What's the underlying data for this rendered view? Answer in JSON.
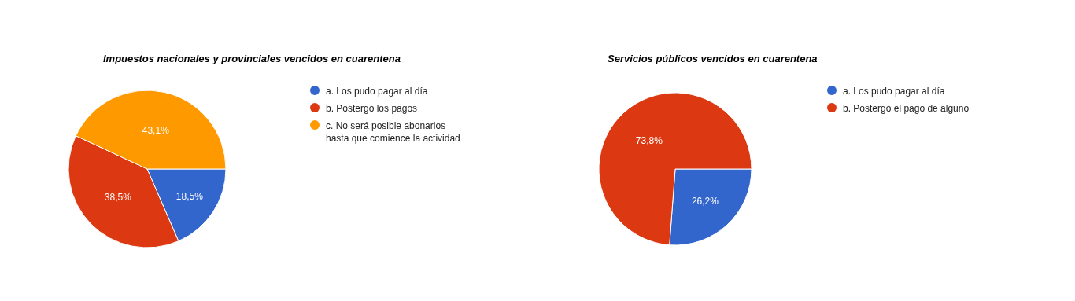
{
  "chart_data": [
    {
      "type": "pie",
      "title": "Impuestos nacionales y provinciales vencidos en cuarentena",
      "categories": [
        "a. Los pudo pagar al día",
        "b. Postergó los pagos",
        "c. No será posible abonarlos hasta que comience la actividad"
      ],
      "values": [
        18.5,
        38.5,
        43.1
      ],
      "value_labels": [
        "18,5%",
        "38,5%",
        "43,1%"
      ],
      "colors": [
        "#3366cc",
        "#dc3912",
        "#ff9900"
      ],
      "legend": "right"
    },
    {
      "type": "pie",
      "title": "Servicios públicos vencidos en cuarentena",
      "categories": [
        "a. Los pudo pagar al día",
        "b. Postergó el pago de alguno"
      ],
      "values": [
        26.2,
        73.8
      ],
      "value_labels": [
        "26,2%",
        "73,8%"
      ],
      "colors": [
        "#3366cc",
        "#dc3912"
      ],
      "legend": "right"
    }
  ]
}
